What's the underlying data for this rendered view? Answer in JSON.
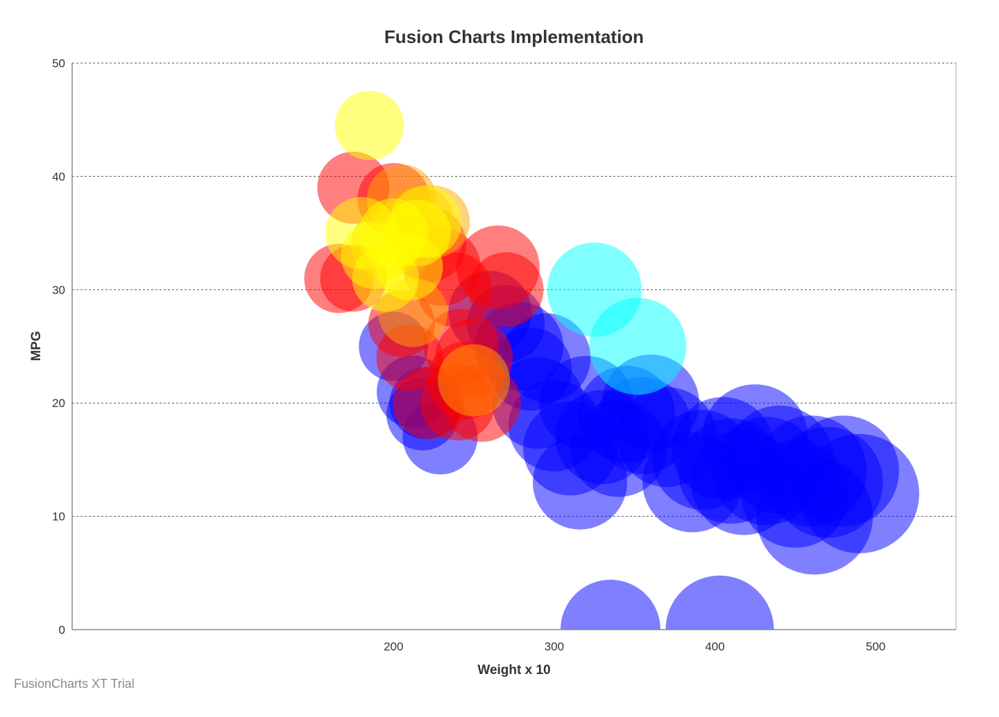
{
  "chart_data": {
    "type": "bubble",
    "title": "Fusion Charts Implementation",
    "xlabel": "Weight x 10",
    "ylabel": "MPG",
    "xlim": [
      0,
      550
    ],
    "ylim": [
      0,
      50
    ],
    "x_ticks": [
      200,
      300,
      400,
      500
    ],
    "y_ticks": [
      0,
      10,
      20,
      30,
      40,
      50
    ],
    "grid": "horizontal dashed",
    "series": [
      {
        "color": "#0000ff",
        "points": [
          {
            "x": 200,
            "y": 25,
            "r": 2.5
          },
          {
            "x": 212,
            "y": 21,
            "r": 2.6
          },
          {
            "x": 218,
            "y": 19,
            "r": 2.6
          },
          {
            "x": 229,
            "y": 17,
            "r": 2.7
          },
          {
            "x": 220,
            "y": 20,
            "r": 2.6
          },
          {
            "x": 260,
            "y": 28,
            "r": 3
          },
          {
            "x": 270,
            "y": 27,
            "r": 2.8
          },
          {
            "x": 278,
            "y": 25,
            "r": 3.2
          },
          {
            "x": 285,
            "y": 23,
            "r": 3
          },
          {
            "x": 295,
            "y": 24,
            "r": 3.2
          },
          {
            "x": 290,
            "y": 20,
            "r": 3.3
          },
          {
            "x": 300,
            "y": 18,
            "r": 3.3
          },
          {
            "x": 310,
            "y": 16,
            "r": 3.4
          },
          {
            "x": 316,
            "y": 13,
            "r": 3.4
          },
          {
            "x": 320,
            "y": 20,
            "r": 3.4
          },
          {
            "x": 330,
            "y": 17,
            "r": 3.4
          },
          {
            "x": 340,
            "y": 16,
            "r": 3.5
          },
          {
            "x": 345,
            "y": 19,
            "r": 3.5
          },
          {
            "x": 355,
            "y": 18,
            "r": 3.5
          },
          {
            "x": 360,
            "y": 20,
            "r": 3.5
          },
          {
            "x": 370,
            "y": 17,
            "r": 3.6
          },
          {
            "x": 386,
            "y": 13,
            "r": 3.6
          },
          {
            "x": 392,
            "y": 15,
            "r": 3.6
          },
          {
            "x": 405,
            "y": 16,
            "r": 3.7
          },
          {
            "x": 410,
            "y": 14,
            "r": 3.8
          },
          {
            "x": 418,
            "y": 13,
            "r": 3.8
          },
          {
            "x": 425,
            "y": 17,
            "r": 3.8
          },
          {
            "x": 432,
            "y": 14,
            "r": 3.9
          },
          {
            "x": 440,
            "y": 15,
            "r": 3.9
          },
          {
            "x": 450,
            "y": 12,
            "r": 3.9
          },
          {
            "x": 460,
            "y": 14,
            "r": 4
          },
          {
            "x": 462,
            "y": 10,
            "r": 4.2
          },
          {
            "x": 470,
            "y": 13,
            "r": 4
          },
          {
            "x": 480,
            "y": 14,
            "r": 4
          },
          {
            "x": 490,
            "y": 12,
            "r": 4.3
          },
          {
            "x": 335,
            "y": 0,
            "r": 3.6
          },
          {
            "x": 403,
            "y": 0,
            "r": 3.9
          }
        ]
      },
      {
        "color": "#00ffff",
        "points": [
          {
            "x": 325,
            "y": 30,
            "r": 3.4
          },
          {
            "x": 352,
            "y": 25,
            "r": 3.5
          }
        ]
      },
      {
        "color": "#ff0000",
        "points": [
          {
            "x": 166,
            "y": 31,
            "r": 2.5
          },
          {
            "x": 175,
            "y": 31,
            "r": 2.4
          },
          {
            "x": 175,
            "y": 39,
            "r": 2.6
          },
          {
            "x": 200,
            "y": 38,
            "r": 2.6
          },
          {
            "x": 205,
            "y": 27,
            "r": 2.4
          },
          {
            "x": 210,
            "y": 24,
            "r": 2.4
          },
          {
            "x": 222,
            "y": 34,
            "r": 2.7
          },
          {
            "x": 230,
            "y": 32,
            "r": 2.8
          },
          {
            "x": 238,
            "y": 30,
            "r": 2.7
          },
          {
            "x": 242,
            "y": 25,
            "r": 2.7
          },
          {
            "x": 245,
            "y": 22,
            "r": 2.8
          },
          {
            "x": 255,
            "y": 20,
            "r": 2.8
          },
          {
            "x": 265,
            "y": 32,
            "r": 3
          },
          {
            "x": 270,
            "y": 30,
            "r": 2.7
          },
          {
            "x": 240,
            "y": 20,
            "r": 2.7
          },
          {
            "x": 222,
            "y": 20,
            "r": 2.6
          },
          {
            "x": 250,
            "y": 24,
            "r": 2.8
          }
        ]
      },
      {
        "color": "#ffa500",
        "points": [
          {
            "x": 195,
            "y": 34,
            "r": 2.5
          },
          {
            "x": 215,
            "y": 36,
            "r": 2.6
          },
          {
            "x": 212,
            "y": 28,
            "r": 2.5
          },
          {
            "x": 205,
            "y": 38,
            "r": 2.5
          },
          {
            "x": 225,
            "y": 36,
            "r": 2.6
          },
          {
            "x": 250,
            "y": 22,
            "r": 2.6
          }
        ]
      },
      {
        "color": "#ffff00",
        "points": [
          {
            "x": 185,
            "y": 44.5,
            "r": 2.5
          },
          {
            "x": 180,
            "y": 35,
            "r": 2.6
          },
          {
            "x": 188,
            "y": 33,
            "r": 2.4
          },
          {
            "x": 195,
            "y": 31,
            "r": 2.4
          },
          {
            "x": 200,
            "y": 35,
            "r": 2.5
          },
          {
            "x": 215,
            "y": 35,
            "r": 2.4
          },
          {
            "x": 210,
            "y": 32,
            "r": 2.4
          },
          {
            "x": 220,
            "y": 36,
            "r": 2.6
          }
        ]
      }
    ]
  },
  "watermark": "FusionCharts XT Trial"
}
